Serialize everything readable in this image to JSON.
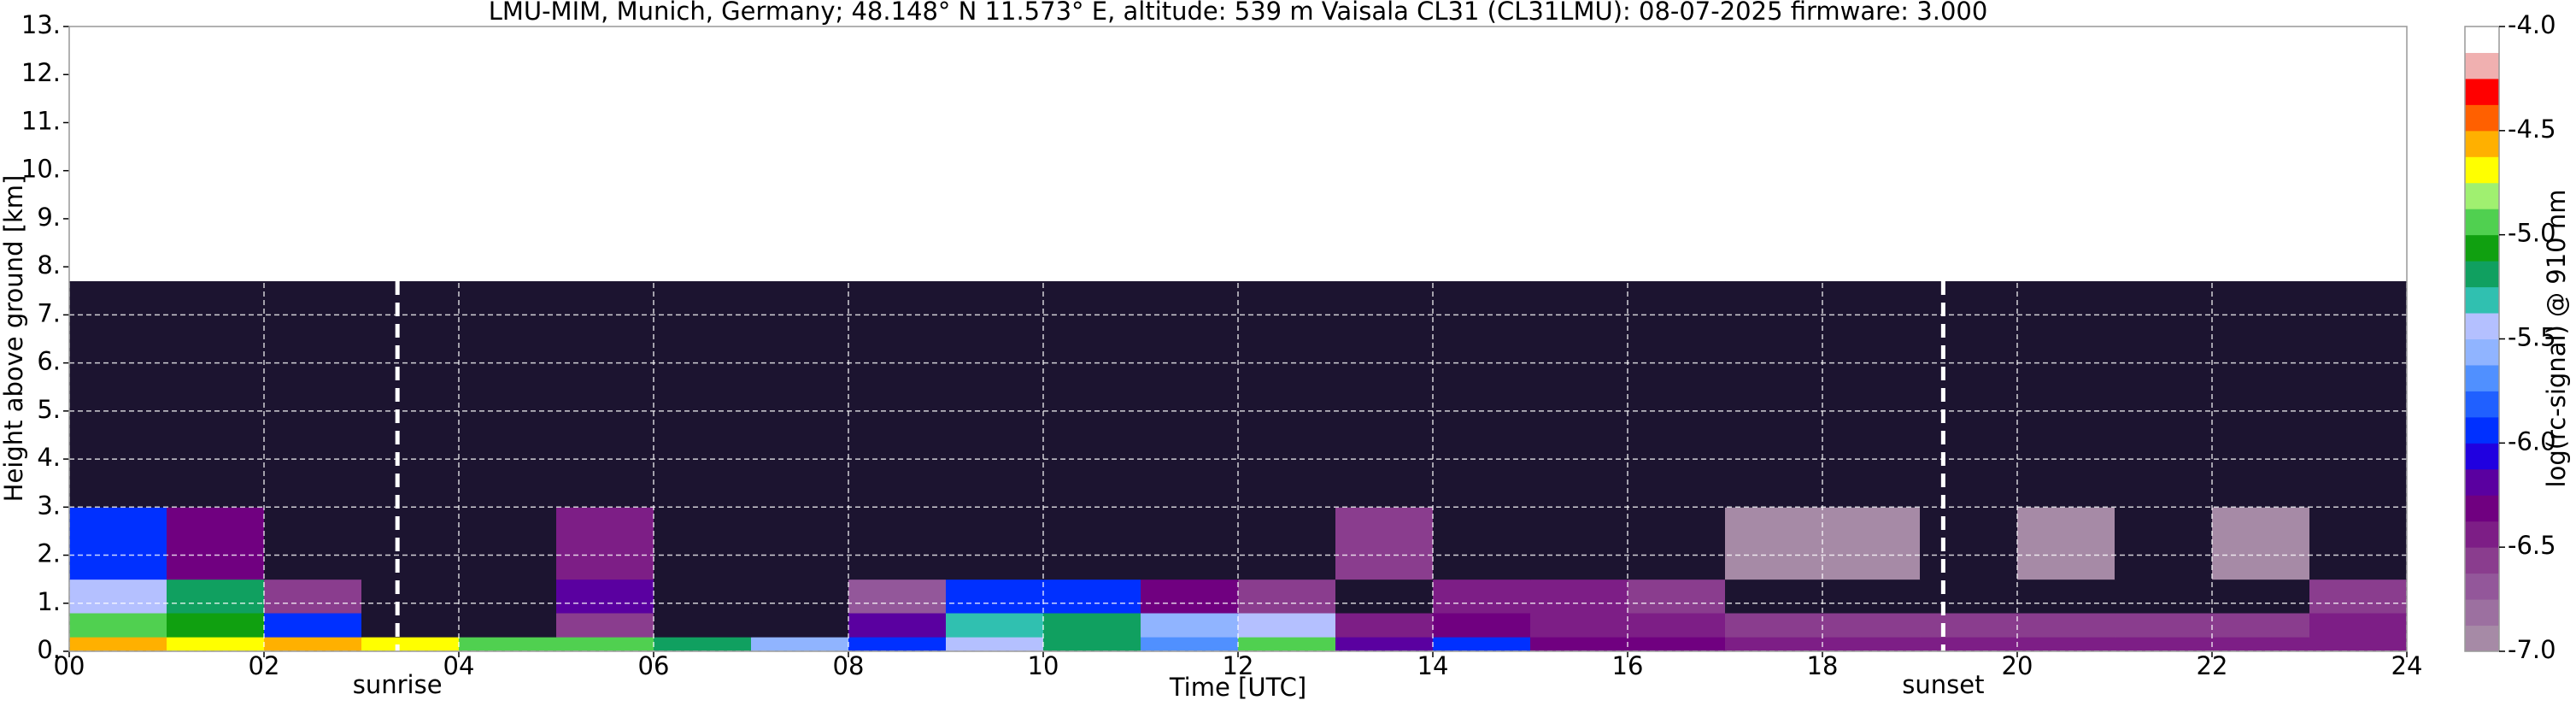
{
  "chart_data": {
    "type": "heatmap",
    "title": "LMU-MIM, Munich, Germany; 48.148° N 11.573° E, altitude: 539 m    Vaisala CL31 (CL31LMU): 08-07-2025    firmware: 3.000",
    "x_label": "Time [UTC]",
    "y_label": "Height above ground [km]",
    "colorbar_label": "log(rc-signal) @ 910 nm",
    "xlim": [
      0,
      24
    ],
    "ylim": [
      0,
      13
    ],
    "clim": [
      -7,
      -4
    ],
    "xticks": [
      {
        "value": 0,
        "label": "00"
      },
      {
        "value": 2,
        "label": "02"
      },
      {
        "value": 4,
        "label": "04"
      },
      {
        "value": 6,
        "label": "06"
      },
      {
        "value": 8,
        "label": "08"
      },
      {
        "value": 10,
        "label": "10"
      },
      {
        "value": 12,
        "label": "12"
      },
      {
        "value": 14,
        "label": "14"
      },
      {
        "value": 16,
        "label": "16"
      },
      {
        "value": 18,
        "label": "18"
      },
      {
        "value": 20,
        "label": "20"
      },
      {
        "value": 22,
        "label": "22"
      },
      {
        "value": 24,
        "label": "24"
      }
    ],
    "yticks": [
      {
        "value": 0,
        "label": "0."
      },
      {
        "value": 1,
        "label": "1."
      },
      {
        "value": 2,
        "label": "2."
      },
      {
        "value": 3,
        "label": "3."
      },
      {
        "value": 4,
        "label": "4."
      },
      {
        "value": 5,
        "label": "5."
      },
      {
        "value": 6,
        "label": "6."
      },
      {
        "value": 7,
        "label": "7."
      },
      {
        "value": 8,
        "label": "8."
      },
      {
        "value": 9,
        "label": "9."
      },
      {
        "value": 10,
        "label": "10."
      },
      {
        "value": 11,
        "label": "11."
      },
      {
        "value": 12,
        "label": "12."
      },
      {
        "value": 13,
        "label": "13."
      }
    ],
    "cticks": [
      {
        "value": -7,
        "label": "-7.0"
      },
      -6.5,
      {
        "value": -6,
        "label": "-6.0"
      },
      -5.5,
      {
        "value": -5,
        "label": "-5.0"
      },
      -4.5,
      {
        "value": -4,
        "label": "-4.0"
      }
    ],
    "x_edges": [
      0,
      1,
      2,
      3,
      4,
      5,
      6,
      7,
      8,
      9,
      10,
      11,
      12,
      13,
      14,
      15,
      16,
      17,
      18,
      19,
      20,
      21,
      22,
      23,
      24
    ],
    "y_edges": [
      0,
      0.3,
      0.8,
      1.5,
      3,
      7.7
    ],
    "z": [
      [
        -4.6,
        -4.7,
        -4.6,
        -4.7,
        -4.9,
        -4.9,
        -5.2,
        -5.6,
        -5.9,
        -5.4,
        -5.2,
        -5.7,
        -4.9,
        -6.2,
        -6.0,
        -6.3,
        -6.3,
        -6.4,
        -6.4,
        -6.5,
        -6.5,
        -6.5,
        -6.5,
        -6.4
      ],
      [
        -4.9,
        -5.1,
        -6.0,
        -7.2,
        -7.2,
        -6.6,
        -7.2,
        -7.1,
        -6.2,
        -5.3,
        -5.2,
        -5.6,
        -5.5,
        -6.5,
        -6.3,
        -6.5,
        -6.5,
        -6.6,
        -6.6,
        -6.6,
        -6.6,
        -6.6,
        -6.6,
        -6.5
      ],
      [
        -5.4,
        -5.2,
        -6.6,
        -7.3,
        -7.3,
        -6.2,
        -7.2,
        -7.2,
        -6.7,
        -6.0,
        -6.0,
        -6.3,
        -6.6,
        -7.1,
        -6.5,
        -6.4,
        -6.6,
        -7.1,
        -7.1,
        -7.1,
        -7.1,
        -7.1,
        -7.1,
        -6.6
      ],
      [
        -6.0,
        -6.3,
        -7.2,
        -7.3,
        -7.3,
        -6.5,
        -7.3,
        -7.3,
        -7.2,
        -7.1,
        -7.1,
        -7.1,
        -7.1,
        -6.6,
        -7.2,
        -7.1,
        -7.1,
        -7.0,
        -7.0,
        -7.1,
        -7.0,
        -7.1,
        -7.0,
        -7.1
      ],
      [
        -7.2,
        -7.2,
        -7.3,
        -7.3,
        -7.3,
        -7.3,
        -7.3,
        -7.3,
        -7.2,
        -7.2,
        -7.2,
        -7.2,
        -7.2,
        -7.1,
        -7.2,
        -7.2,
        -7.2,
        -7.2,
        -7.2,
        -7.2,
        -7.1,
        -7.2,
        -7.1,
        -7.2
      ]
    ],
    "colors": [
      "#a68aa6",
      "#9c70a0",
      "#93579a",
      "#8a3d8e",
      "#7d1e86",
      "#700080",
      "#5a00a0",
      "#2000e0",
      "#0030ff",
      "#2060ff",
      "#5090ff",
      "#90b4ff",
      "#b4c0ff",
      "#30c0b0",
      "#10a060",
      "#10a010",
      "#50d050",
      "#a0f070",
      "#ffff00",
      "#ffb000",
      "#ff6000",
      "#ff0000",
      "#f0b0b0",
      "#ffffff"
    ],
    "under_color": "#1c1430",
    "grid": true,
    "annotations": [
      {
        "text": "sunrise",
        "x": 3.37
      },
      {
        "text": "sunset",
        "x": 19.24
      }
    ]
  }
}
